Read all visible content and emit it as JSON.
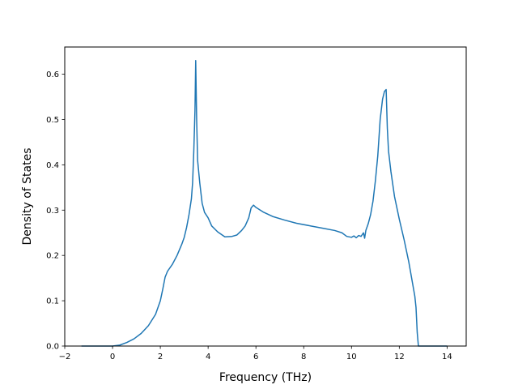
{
  "chart_data": {
    "type": "line",
    "title": "",
    "xlabel": "Frequency (THz)",
    "ylabel": "Density of States",
    "xlim": [
      -2.0,
      14.8
    ],
    "ylim": [
      0.0,
      0.66
    ],
    "xticks": [
      -2,
      0,
      2,
      4,
      6,
      8,
      10,
      12,
      14
    ],
    "yticks": [
      0.0,
      0.1,
      0.2,
      0.3,
      0.4,
      0.5,
      0.6
    ],
    "xtick_labels": [
      "−2",
      "0",
      "2",
      "4",
      "6",
      "8",
      "10",
      "12",
      "14"
    ],
    "ytick_labels": [
      "0.0",
      "0.1",
      "0.2",
      "0.3",
      "0.4",
      "0.5",
      "0.6"
    ],
    "grid": false,
    "series": [
      {
        "color": "#1f77b4",
        "points": [
          [
            -1.3,
            0.0
          ],
          [
            0.0,
            0.0
          ],
          [
            0.3,
            0.002
          ],
          [
            0.6,
            0.008
          ],
          [
            0.9,
            0.016
          ],
          [
            1.2,
            0.028
          ],
          [
            1.5,
            0.045
          ],
          [
            1.8,
            0.07
          ],
          [
            2.0,
            0.1
          ],
          [
            2.1,
            0.125
          ],
          [
            2.2,
            0.152
          ],
          [
            2.3,
            0.165
          ],
          [
            2.5,
            0.18
          ],
          [
            2.7,
            0.2
          ],
          [
            2.9,
            0.225
          ],
          [
            3.0,
            0.24
          ],
          [
            3.1,
            0.262
          ],
          [
            3.2,
            0.29
          ],
          [
            3.3,
            0.325
          ],
          [
            3.35,
            0.36
          ],
          [
            3.4,
            0.43
          ],
          [
            3.45,
            0.52
          ],
          [
            3.48,
            0.63
          ],
          [
            3.52,
            0.5
          ],
          [
            3.56,
            0.41
          ],
          [
            3.65,
            0.36
          ],
          [
            3.75,
            0.315
          ],
          [
            3.85,
            0.295
          ],
          [
            4.0,
            0.283
          ],
          [
            4.15,
            0.265
          ],
          [
            4.4,
            0.252
          ],
          [
            4.7,
            0.241
          ],
          [
            5.0,
            0.242
          ],
          [
            5.2,
            0.245
          ],
          [
            5.4,
            0.255
          ],
          [
            5.55,
            0.265
          ],
          [
            5.7,
            0.283
          ],
          [
            5.8,
            0.305
          ],
          [
            5.9,
            0.311
          ],
          [
            6.0,
            0.306
          ],
          [
            6.3,
            0.296
          ],
          [
            6.7,
            0.286
          ],
          [
            7.2,
            0.278
          ],
          [
            7.7,
            0.271
          ],
          [
            8.3,
            0.265
          ],
          [
            8.8,
            0.26
          ],
          [
            9.3,
            0.255
          ],
          [
            9.6,
            0.25
          ],
          [
            9.8,
            0.242
          ],
          [
            10.0,
            0.24
          ],
          [
            10.1,
            0.243
          ],
          [
            10.2,
            0.239
          ],
          [
            10.3,
            0.244
          ],
          [
            10.4,
            0.242
          ],
          [
            10.5,
            0.25
          ],
          [
            10.55,
            0.238
          ],
          [
            10.6,
            0.255
          ],
          [
            10.7,
            0.27
          ],
          [
            10.8,
            0.29
          ],
          [
            10.9,
            0.32
          ],
          [
            11.0,
            0.365
          ],
          [
            11.1,
            0.42
          ],
          [
            11.15,
            0.46
          ],
          [
            11.2,
            0.5
          ],
          [
            11.3,
            0.545
          ],
          [
            11.38,
            0.562
          ],
          [
            11.45,
            0.566
          ],
          [
            11.5,
            0.48
          ],
          [
            11.55,
            0.43
          ],
          [
            11.65,
            0.385
          ],
          [
            11.8,
            0.33
          ],
          [
            12.0,
            0.28
          ],
          [
            12.2,
            0.235
          ],
          [
            12.4,
            0.185
          ],
          [
            12.55,
            0.14
          ],
          [
            12.65,
            0.11
          ],
          [
            12.7,
            0.085
          ],
          [
            12.75,
            0.03
          ],
          [
            12.8,
            0.0
          ],
          [
            14.0,
            0.0
          ]
        ]
      }
    ]
  }
}
